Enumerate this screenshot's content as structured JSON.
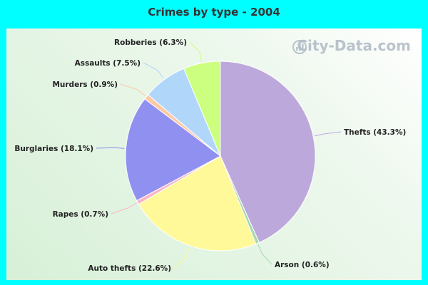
{
  "watermark": "City-Data.com",
  "chart_data": {
    "type": "pie",
    "title": "Crimes by type - 2004",
    "slices": [
      {
        "label": "Thefts (43.3%)",
        "value": 43.3,
        "color": "#bda8db"
      },
      {
        "label": "Arson (0.6%)",
        "value": 0.6,
        "color": "#a8d8b0"
      },
      {
        "label": "Auto thefts (22.6%)",
        "value": 22.6,
        "color": "#fff99a"
      },
      {
        "label": "Rapes (0.7%)",
        "value": 0.7,
        "color": "#f7b7c7"
      },
      {
        "label": "Burglaries (18.1%)",
        "value": 18.1,
        "color": "#8f90f0"
      },
      {
        "label": "Murders (0.9%)",
        "value": 0.9,
        "color": "#ffc9a6"
      },
      {
        "label": "Assaults (7.5%)",
        "value": 7.5,
        "color": "#b0d6fa"
      },
      {
        "label": "Robberies (6.3%)",
        "value": 6.3,
        "color": "#ccff7f"
      }
    ]
  }
}
